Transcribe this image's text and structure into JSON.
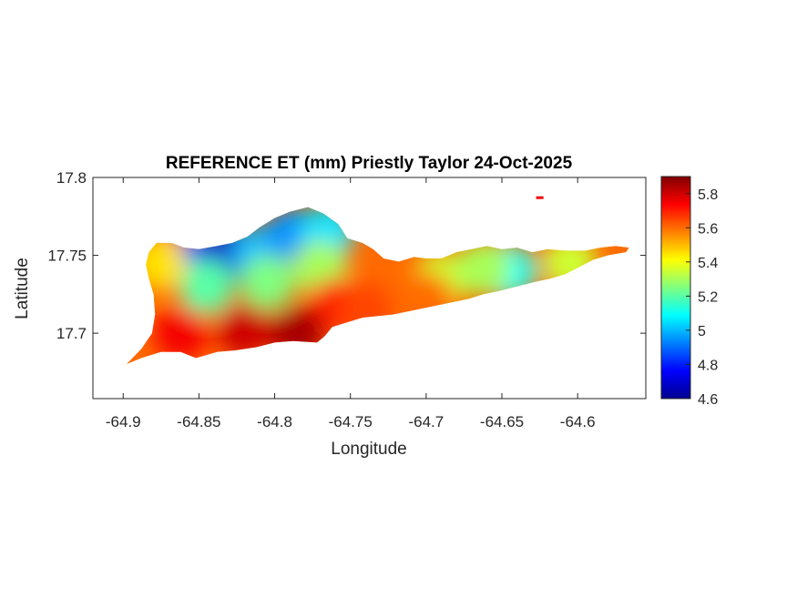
{
  "chart_data": {
    "type": "heatmap",
    "title": "REFERENCE ET (mm) Priestly Taylor 24-Oct-2025",
    "xlabel": "Longitude",
    "ylabel": "Latitude",
    "xlim": [
      -64.92,
      -64.555
    ],
    "ylim": [
      17.658,
      17.8
    ],
    "x_ticks": [
      -64.9,
      -64.85,
      -64.8,
      -64.75,
      -64.7,
      -64.65,
      -64.6
    ],
    "x_tick_labels": [
      "-64.9",
      "-64.85",
      "-64.8",
      "-64.75",
      "-64.7",
      "-64.65",
      "-64.6"
    ],
    "y_ticks": [
      17.7,
      17.75,
      17.8
    ],
    "y_tick_labels": [
      "17.7",
      "17.75",
      "17.8"
    ],
    "colorbar": {
      "colormap": "jet",
      "range": [
        4.6,
        5.9
      ],
      "ticks": [
        4.6,
        4.8,
        5,
        5.2,
        5.4,
        5.6,
        5.8
      ],
      "tick_labels": [
        "4.6",
        "4.8",
        "5",
        "5.2",
        "5.4",
        "5.6",
        "5.8"
      ]
    },
    "grid": false,
    "island_outline": [
      [
        -64.898,
        17.68
      ],
      [
        -64.888,
        17.69
      ],
      [
        -64.881,
        17.7
      ],
      [
        -64.879,
        17.712
      ],
      [
        -64.88,
        17.725
      ],
      [
        -64.883,
        17.735
      ],
      [
        -64.885,
        17.744
      ],
      [
        -64.883,
        17.752
      ],
      [
        -64.878,
        17.758
      ],
      [
        -64.868,
        17.758
      ],
      [
        -64.86,
        17.755
      ],
      [
        -64.85,
        17.754
      ],
      [
        -64.838,
        17.756
      ],
      [
        -64.828,
        17.758
      ],
      [
        -64.818,
        17.762
      ],
      [
        -64.81,
        17.768
      ],
      [
        -64.8,
        17.774
      ],
      [
        -64.79,
        17.778
      ],
      [
        -64.778,
        17.781
      ],
      [
        -64.768,
        17.777
      ],
      [
        -64.758,
        17.77
      ],
      [
        -64.752,
        17.761
      ],
      [
        -64.742,
        17.758
      ],
      [
        -64.735,
        17.754
      ],
      [
        -64.728,
        17.748
      ],
      [
        -64.718,
        17.746
      ],
      [
        -64.708,
        17.749
      ],
      [
        -64.7,
        17.748
      ],
      [
        -64.69,
        17.748
      ],
      [
        -64.68,
        17.752
      ],
      [
        -64.67,
        17.754
      ],
      [
        -64.66,
        17.756
      ],
      [
        -64.65,
        17.754
      ],
      [
        -64.64,
        17.755
      ],
      [
        -64.63,
        17.752
      ],
      [
        -64.62,
        17.754
      ],
      [
        -64.608,
        17.753
      ],
      [
        -64.595,
        17.753
      ],
      [
        -64.585,
        17.755
      ],
      [
        -64.575,
        17.756
      ],
      [
        -64.566,
        17.755
      ],
      [
        -64.568,
        17.752
      ],
      [
        -64.58,
        17.75
      ],
      [
        -64.59,
        17.747
      ],
      [
        -64.6,
        17.742
      ],
      [
        -64.608,
        17.738
      ],
      [
        -64.618,
        17.735
      ],
      [
        -64.628,
        17.733
      ],
      [
        -64.64,
        17.73
      ],
      [
        -64.652,
        17.727
      ],
      [
        -64.662,
        17.725
      ],
      [
        -64.672,
        17.722
      ],
      [
        -64.682,
        17.72
      ],
      [
        -64.692,
        17.718
      ],
      [
        -64.702,
        17.716
      ],
      [
        -64.712,
        17.714
      ],
      [
        -64.722,
        17.712
      ],
      [
        -64.732,
        17.711
      ],
      [
        -64.742,
        17.71
      ],
      [
        -64.752,
        17.707
      ],
      [
        -64.762,
        17.704
      ],
      [
        -64.767,
        17.698
      ],
      [
        -64.772,
        17.694
      ],
      [
        -64.788,
        17.695
      ],
      [
        -64.8,
        17.694
      ],
      [
        -64.812,
        17.691
      ],
      [
        -64.826,
        17.689
      ],
      [
        -64.838,
        17.688
      ],
      [
        -64.852,
        17.684
      ],
      [
        -64.862,
        17.688
      ],
      [
        -64.875,
        17.688
      ],
      [
        -64.888,
        17.684
      ]
    ],
    "et_zones": [
      {
        "lon": -64.853,
        "lat": 17.747,
        "value": 4.85
      },
      {
        "lon": -64.83,
        "lat": 17.75,
        "value": 4.7
      },
      {
        "lon": -64.81,
        "lat": 17.752,
        "value": 5.0
      },
      {
        "lon": -64.788,
        "lat": 17.763,
        "value": 4.95
      },
      {
        "lon": -64.765,
        "lat": 17.765,
        "value": 5.05
      },
      {
        "lon": -64.845,
        "lat": 17.73,
        "value": 5.2
      },
      {
        "lon": -64.805,
        "lat": 17.733,
        "value": 5.25
      },
      {
        "lon": -64.77,
        "lat": 17.742,
        "value": 5.3
      },
      {
        "lon": -64.645,
        "lat": 17.74,
        "value": 5.1
      },
      {
        "lon": -64.69,
        "lat": 17.735,
        "value": 5.35
      },
      {
        "lon": -64.662,
        "lat": 17.742,
        "value": 5.3
      },
      {
        "lon": -64.605,
        "lat": 17.745,
        "value": 5.35
      },
      {
        "lon": -64.876,
        "lat": 17.745,
        "value": 5.45
      },
      {
        "lon": -64.76,
        "lat": 17.718,
        "value": 5.7
      },
      {
        "lon": -64.82,
        "lat": 17.702,
        "value": 5.8
      },
      {
        "lon": -64.862,
        "lat": 17.7,
        "value": 5.75
      },
      {
        "lon": -64.785,
        "lat": 17.7,
        "value": 5.85
      },
      {
        "lon": -64.74,
        "lat": 17.715,
        "value": 5.65
      },
      {
        "lon": -64.7,
        "lat": 17.722,
        "value": 5.6
      }
    ],
    "offshore_point": {
      "lon": -64.625,
      "lat": 17.787,
      "value": 5.75
    }
  }
}
